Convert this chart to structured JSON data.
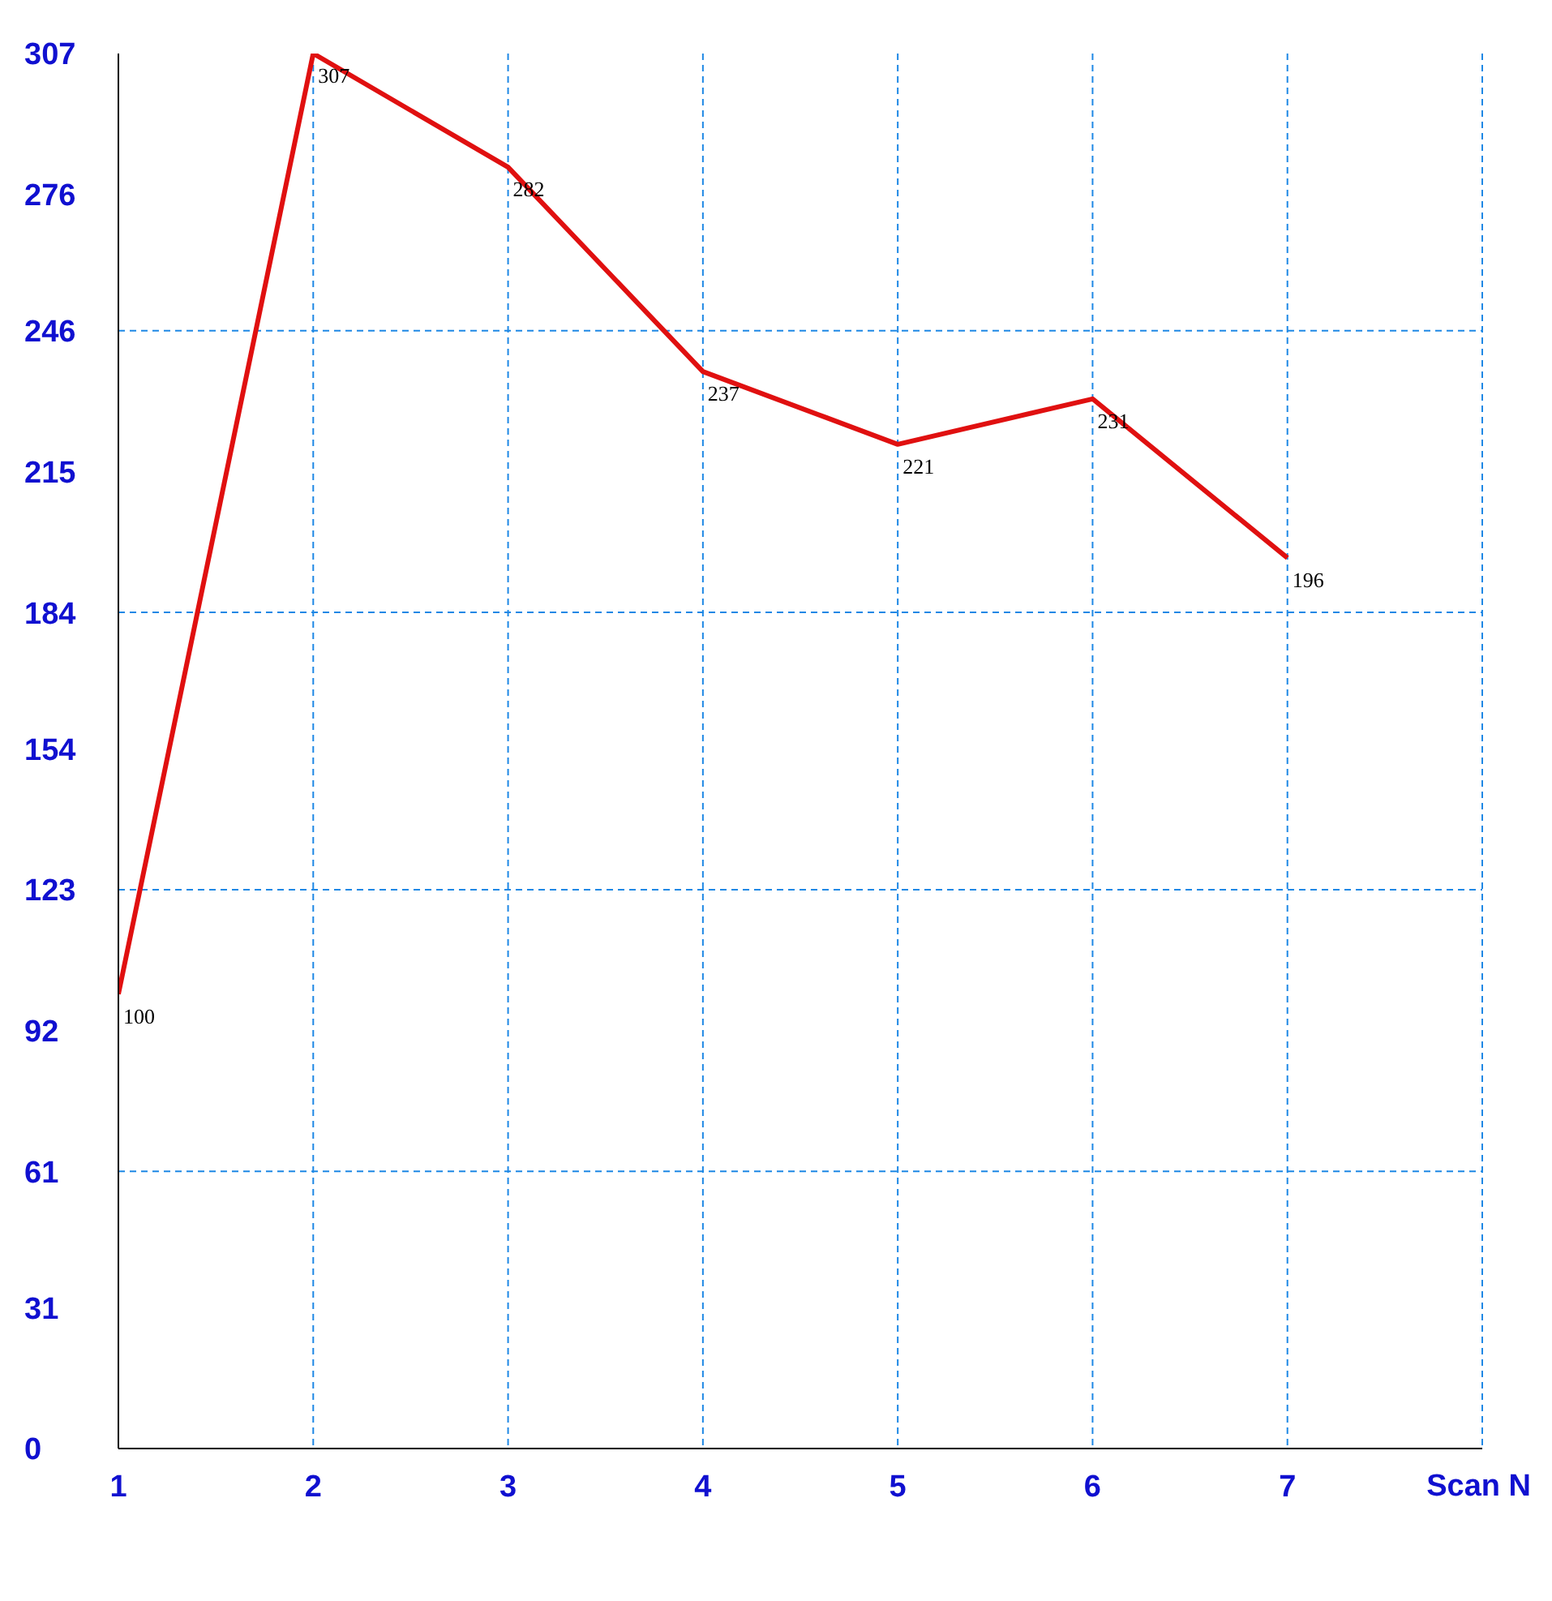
{
  "chart_data": {
    "type": "line",
    "xlabel": "Scan N",
    "x": [
      1,
      2,
      3,
      4,
      5,
      6,
      7
    ],
    "series": [
      {
        "color": "#e01010",
        "values": [
          100,
          307,
          282,
          237,
          221,
          231,
          196
        ]
      }
    ],
    "xlim": [
      1,
      8
    ],
    "xticks": [
      1,
      2,
      3,
      4,
      5,
      6,
      7
    ],
    "ylim": [
      0,
      307
    ],
    "yticks": [
      0,
      31,
      61,
      92,
      123,
      154,
      184,
      215,
      246,
      276,
      307
    ],
    "grid": "x",
    "data_labels": true,
    "marker": "none",
    "line_style": "solid",
    "legend": false,
    "ref_lines": [
      {
        "axis": "y",
        "value": 61,
        "color": "#1e88e5",
        "line_style": "dashed"
      },
      {
        "axis": "y",
        "value": 123,
        "color": "#1e88e5",
        "line_style": "dashed"
      },
      {
        "axis": "y",
        "value": 184,
        "color": "#1e88e5",
        "line_style": "dashed"
      },
      {
        "axis": "y",
        "value": 246,
        "color": "#1e88e5",
        "line_style": "dashed"
      }
    ]
  }
}
